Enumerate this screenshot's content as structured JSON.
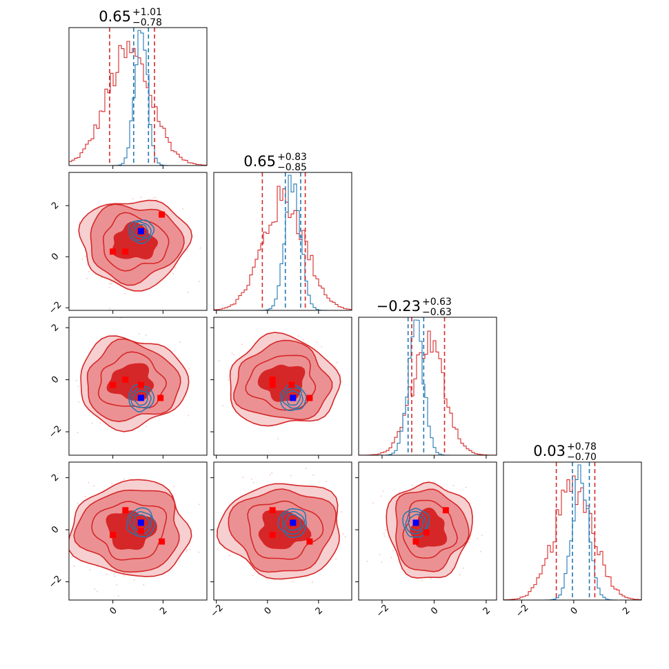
{
  "chart_data": {
    "type": "corner",
    "parameters": 4,
    "colors": {
      "samples_red": "#d62728",
      "contour_red_fill_inner": "#d62728",
      "contour_red_fill_mid": "#eb9193",
      "contour_red_fill_outer": "#f6cfd0",
      "samples_blue": "#1f77b4",
      "marker_red": "#ff0000",
      "marker_blue": "#0000ff"
    },
    "axis_limits": [
      [
        -1.75,
        3.75
      ],
      [
        -2.1,
        3.3
      ],
      [
        -2.9,
        2.4
      ],
      [
        -2.7,
        2.6
      ]
    ],
    "ticks": [
      [
        0,
        2
      ],
      [
        -2,
        0,
        2
      ],
      [
        -2,
        0,
        2
      ],
      [
        -2,
        0,
        2
      ]
    ],
    "titles": [
      {
        "main": "0.65",
        "plus": "+1.01",
        "minus": "−0.78"
      },
      {
        "main": "0.65",
        "plus": "+0.83",
        "minus": "−0.85"
      },
      {
        "main": "−0.23",
        "plus": "+0.63",
        "minus": "−0.63"
      },
      {
        "main": "0.03",
        "plus": "+0.78",
        "minus": "−0.70"
      }
    ],
    "red_quantile_lines": [
      [
        -0.13,
        1.66
      ],
      [
        -0.2,
        1.48
      ],
      [
        -0.86,
        0.4
      ],
      [
        -0.67,
        0.81
      ]
    ],
    "blue_quantile_lines": [
      [
        0.83,
        1.42
      ],
      [
        0.7,
        1.3
      ],
      [
        -1.0,
        -0.4
      ],
      [
        -0.05,
        0.6
      ]
    ],
    "marginals": [
      {
        "red": {
          "mean": 0.65,
          "sd": 0.9
        },
        "blue": {
          "mean": 1.12,
          "sd": 0.25
        }
      },
      {
        "red": {
          "mean": 0.65,
          "sd": 0.84
        },
        "blue": {
          "mean": 1.0,
          "sd": 0.3
        }
      },
      {
        "red": {
          "mean": -0.23,
          "sd": 0.63
        },
        "blue": {
          "mean": -0.7,
          "sd": 0.3
        }
      },
      {
        "red": {
          "mean": 0.03,
          "sd": 0.74
        },
        "blue": {
          "mean": 0.27,
          "sd": 0.32
        }
      }
    ],
    "joint_panels": [
      {
        "row": 1,
        "col": 0,
        "red_center": [
          0.85,
          0.55
        ],
        "red_spread": [
          1.0,
          0.8
        ],
        "blue_center": [
          1.12,
          1.0
        ],
        "blue_radius": [
          0.5,
          0.45
        ],
        "red_markers": [
          [
            0.0,
            0.2
          ],
          [
            0.5,
            0.2
          ],
          [
            1.95,
            1.65
          ]
        ],
        "blue_marker": [
          1.12,
          1.0
        ]
      },
      {
        "row": 2,
        "col": 0,
        "red_center": [
          0.75,
          -0.1
        ],
        "red_spread": [
          1.0,
          0.8
        ],
        "blue_center": [
          1.12,
          -0.7
        ],
        "blue_radius": [
          0.5,
          0.5
        ],
        "red_markers": [
          [
            0.0,
            -0.2
          ],
          [
            0.5,
            0.0
          ],
          [
            1.12,
            -0.2
          ],
          [
            1.9,
            -0.7
          ]
        ],
        "blue_marker": [
          1.12,
          -0.7
        ]
      },
      {
        "row": 2,
        "col": 1,
        "red_center": [
          0.6,
          -0.1
        ],
        "red_spread": [
          1.0,
          0.8
        ],
        "blue_center": [
          1.0,
          -0.7
        ],
        "blue_radius": [
          0.5,
          0.5
        ],
        "red_markers": [
          [
            0.2,
            0.0
          ],
          [
            0.2,
            -0.2
          ],
          [
            0.95,
            -0.2
          ],
          [
            1.65,
            -0.7
          ]
        ],
        "blue_marker": [
          1.0,
          -0.7
        ]
      },
      {
        "row": 3,
        "col": 0,
        "red_center": [
          0.7,
          0.0
        ],
        "red_spread": [
          1.1,
          0.85
        ],
        "blue_center": [
          1.12,
          0.27
        ],
        "blue_radius": [
          0.55,
          0.55
        ],
        "red_markers": [
          [
            0.0,
            -0.2
          ],
          [
            0.5,
            0.75
          ],
          [
            1.12,
            -0.05
          ],
          [
            1.95,
            -0.45
          ]
        ],
        "blue_marker": [
          1.12,
          0.27
        ]
      },
      {
        "row": 3,
        "col": 1,
        "red_center": [
          0.6,
          0.0
        ],
        "red_spread": [
          1.1,
          0.85
        ],
        "blue_center": [
          1.0,
          0.27
        ],
        "blue_radius": [
          0.55,
          0.55
        ],
        "red_markers": [
          [
            0.2,
            0.75
          ],
          [
            0.2,
            -0.2
          ],
          [
            1.65,
            -0.45
          ]
        ],
        "blue_marker": [
          1.0,
          0.27
        ]
      },
      {
        "row": 3,
        "col": 2,
        "red_center": [
          -0.2,
          0.0
        ],
        "red_spread": [
          0.75,
          0.85
        ],
        "blue_center": [
          -0.7,
          0.27
        ],
        "blue_radius": [
          0.5,
          0.55
        ],
        "red_markers": [
          [
            0.45,
            0.75
          ],
          [
            -0.3,
            -0.1
          ],
          [
            -0.7,
            -0.45
          ]
        ],
        "blue_marker": [
          -0.7,
          0.27
        ]
      }
    ]
  }
}
